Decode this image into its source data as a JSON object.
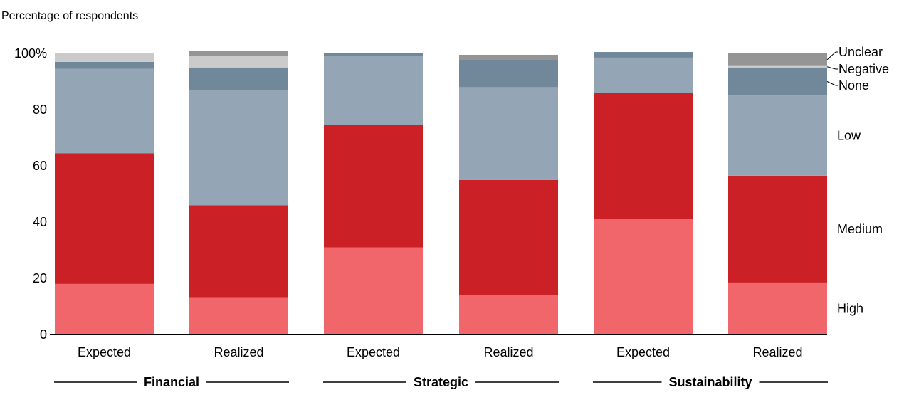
{
  "chart_data": {
    "type": "bar",
    "stacked": true,
    "ylabel": "Percentage of respondents",
    "ylim": [
      0,
      100
    ],
    "y_ticks": [
      "0",
      "20",
      "40",
      "60",
      "80",
      "100%"
    ],
    "y_tick_values": [
      0,
      20,
      40,
      60,
      80,
      100
    ],
    "categories": [
      "Expected",
      "Realized",
      "Expected",
      "Realized",
      "Expected",
      "Realized"
    ],
    "groups": [
      {
        "label": "Financial",
        "categories": [
          0,
          1
        ]
      },
      {
        "label": "Strategic",
        "categories": [
          2,
          3
        ]
      },
      {
        "label": "Sustainability",
        "categories": [
          4,
          5
        ]
      }
    ],
    "series": [
      {
        "name": "High",
        "color": "#f0666a",
        "values": [
          18,
          13,
          31,
          14,
          41,
          18.5
        ]
      },
      {
        "name": "Medium",
        "color": "#cc2027",
        "values": [
          46.5,
          33,
          43.5,
          41,
          45,
          38
        ]
      },
      {
        "name": "Low",
        "color": "#94a6b5",
        "values": [
          30,
          41,
          24.5,
          33,
          12.5,
          28.5
        ]
      },
      {
        "name": "None",
        "color": "#71889b",
        "values": [
          2.5,
          8,
          1,
          9.5,
          2,
          10
        ]
      },
      {
        "name": "Negative",
        "color": "#cbcbcb",
        "values": [
          3,
          4,
          0,
          0,
          0,
          0.5
        ]
      },
      {
        "name": "Unclear",
        "color": "#959595",
        "values": [
          0,
          2,
          0,
          2,
          0,
          4.5
        ]
      }
    ],
    "legend_placement": "right, labels aligned with final bar segments",
    "grid": false
  }
}
